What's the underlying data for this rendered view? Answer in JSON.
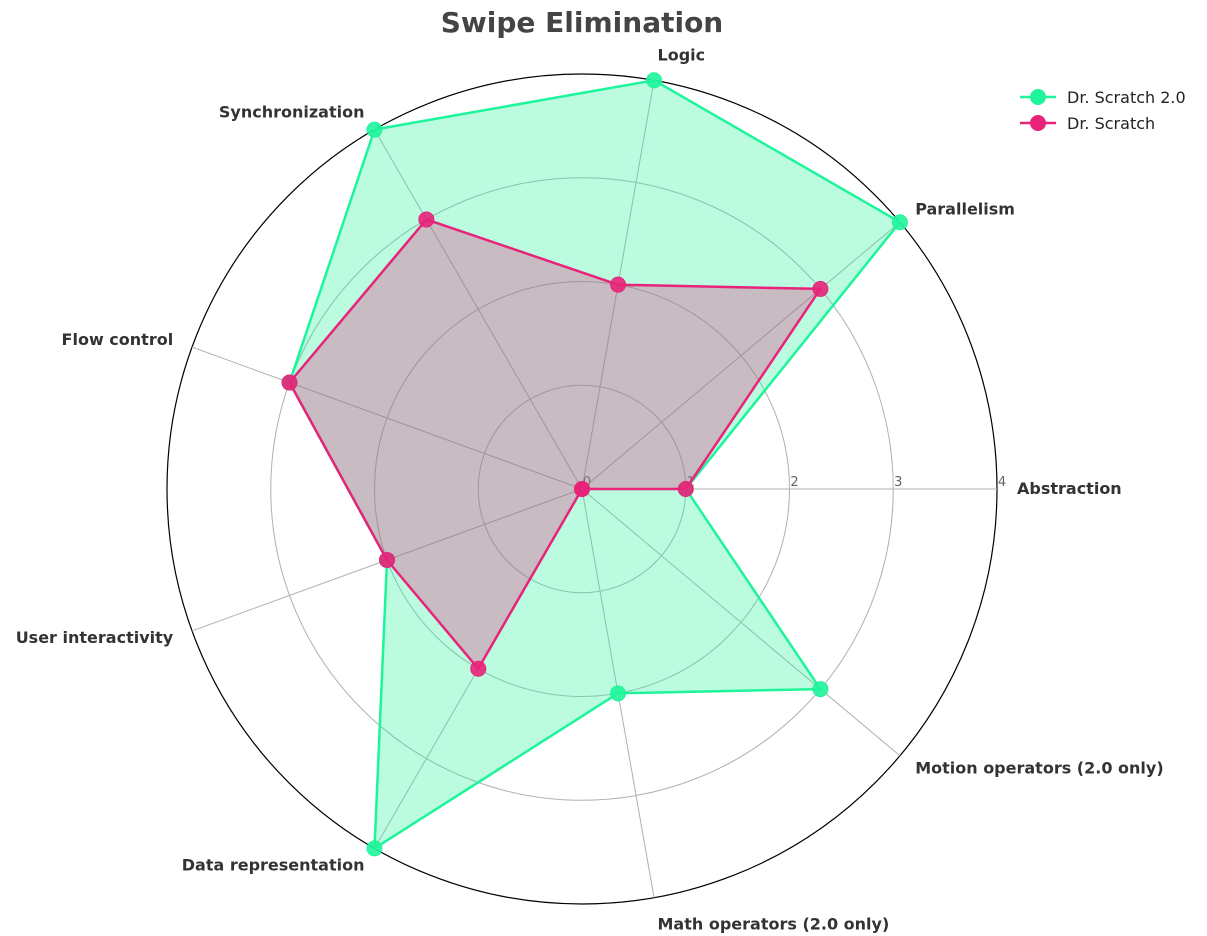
{
  "chart_data": {
    "type": "radar",
    "title": "Swipe Elimination",
    "categories": [
      "Abstraction",
      "Parallelism",
      "Logic",
      "Synchronization",
      "Flow control",
      "User interactivity",
      "Data representation",
      "Math operators (2.0 only)",
      "Motion operators (2.0 only)"
    ],
    "radial_ticks": [
      "0",
      "1",
      "2",
      "3",
      "4"
    ],
    "rlim": [
      0,
      4
    ],
    "grid": true,
    "legend_position": "top-right",
    "series": [
      {
        "name": "Dr. Scratch 2.0",
        "color": "#1ef59a",
        "values": [
          1,
          4,
          4,
          4,
          3,
          2,
          4,
          2,
          3
        ]
      },
      {
        "name": "Dr. Scratch",
        "color": "#e8237a",
        "values": [
          1,
          3,
          2,
          3,
          3,
          2,
          2,
          0,
          0
        ]
      }
    ]
  }
}
